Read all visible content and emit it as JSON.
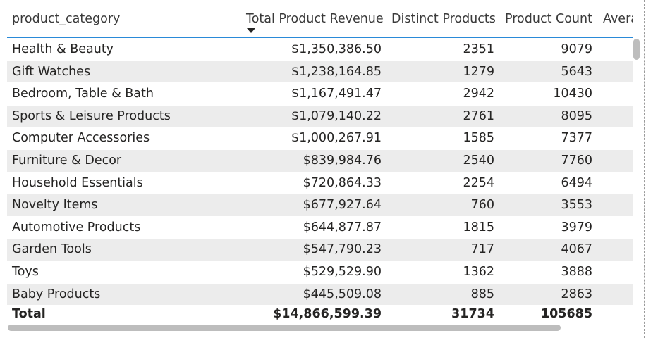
{
  "table": {
    "columns": [
      {
        "label": "product_category"
      },
      {
        "label": "Total Product Revenue",
        "sorted": "descending"
      },
      {
        "label": "Distinct Products"
      },
      {
        "label": "Product Count"
      },
      {
        "label": "Avera"
      }
    ],
    "rows": [
      {
        "category": "Health & Beauty",
        "revenue": "$1,350,386.50",
        "distinct": "2351",
        "count": "9079"
      },
      {
        "category": "Gift Watches",
        "revenue": "$1,238,164.85",
        "distinct": "1279",
        "count": "5643"
      },
      {
        "category": "Bedroom, Table & Bath",
        "revenue": "$1,167,491.47",
        "distinct": "2942",
        "count": "10430"
      },
      {
        "category": "Sports & Leisure Products",
        "revenue": "$1,079,140.22",
        "distinct": "2761",
        "count": "8095"
      },
      {
        "category": "Computer Accessories",
        "revenue": "$1,000,267.91",
        "distinct": "1585",
        "count": "7377"
      },
      {
        "category": "Furniture & Decor",
        "revenue": "$839,984.76",
        "distinct": "2540",
        "count": "7760"
      },
      {
        "category": "Household Essentials",
        "revenue": "$720,864.33",
        "distinct": "2254",
        "count": "6494"
      },
      {
        "category": "Novelty Items",
        "revenue": "$677,927.64",
        "distinct": "760",
        "count": "3553"
      },
      {
        "category": "Automotive Products",
        "revenue": "$644,877.87",
        "distinct": "1815",
        "count": "3979"
      },
      {
        "category": "Garden Tools",
        "revenue": "$547,790.23",
        "distinct": "717",
        "count": "4067"
      },
      {
        "category": "Toys",
        "revenue": "$529,529.90",
        "distinct": "1362",
        "count": "3888"
      },
      {
        "category": "Baby Products",
        "revenue": "$445,509.08",
        "distinct": "885",
        "count": "2863"
      }
    ],
    "total": {
      "label": "Total",
      "revenue": "$14,866,599.39",
      "distinct": "31734",
      "count": "105685"
    }
  },
  "colors": {
    "accent": "#2a8ad8",
    "alt_row": "#ececec",
    "scrollbar": "#bdbdbd"
  },
  "icons": {
    "sort": "sort-descending-arrow-icon"
  }
}
